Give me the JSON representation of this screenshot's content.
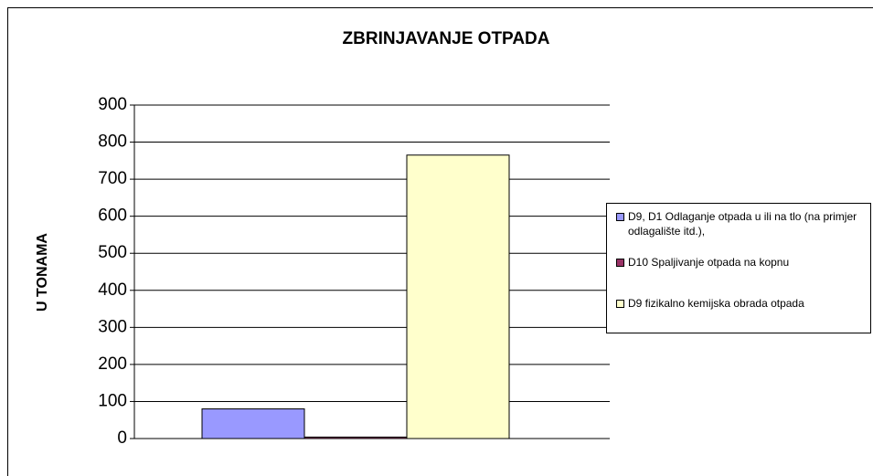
{
  "chart_data": {
    "type": "bar",
    "title": "ZBRINJAVANJE OTPADA",
    "y_label": "U TONAMA",
    "categories": [
      null
    ],
    "series": [
      {
        "name": "D9, D1  Odlaganje otpada u ili na tlo (na primjer odlagalište itd.),",
        "color": "#9999ff",
        "values": [
          80
        ]
      },
      {
        "name": "D10 Spaljivanje otpada na kopnu",
        "color": "#993366",
        "values": [
          4
        ]
      },
      {
        "name": "D9 fizikalno kemijska obrada otpada",
        "color": "#ffffcc",
        "values": [
          765
        ]
      }
    ],
    "ylim": [
      0,
      900
    ],
    "yticks": [
      0,
      100,
      200,
      300,
      400,
      500,
      600,
      700,
      800,
      900
    ],
    "grid": true,
    "legend": "right"
  }
}
